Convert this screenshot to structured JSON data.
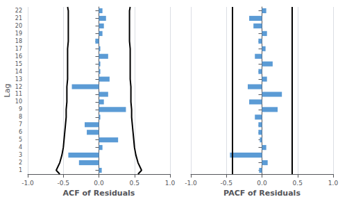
{
  "chart_data": [
    {
      "type": "bar",
      "orientation": "horizontal",
      "xlabel": "ACF of Residuals",
      "ylabel": "Lag",
      "y": [
        1,
        2,
        3,
        4,
        5,
        6,
        7,
        8,
        9,
        10,
        11,
        12,
        13,
        14,
        15,
        16,
        17,
        18,
        19,
        20,
        21,
        22
      ],
      "values": [
        0.04,
        -0.28,
        -0.43,
        0.05,
        0.27,
        -0.17,
        -0.2,
        0.02,
        0.38,
        0.07,
        0.13,
        -0.38,
        0.15,
        0.02,
        0.02,
        0.13,
        0.02,
        -0.05,
        0.05,
        0.07,
        0.1,
        0.05
      ],
      "color": "#5B9BD5",
      "conf_band": {
        "color": "#000000",
        "y": [
          0.5,
          1,
          2,
          3,
          4,
          5,
          6,
          7,
          8,
          9,
          10,
          11,
          12,
          13,
          14,
          15,
          16,
          17,
          18,
          19,
          20,
          21,
          22,
          22.5
        ],
        "low": [
          -0.55,
          -0.6,
          -0.55,
          -0.52,
          -0.5,
          -0.49,
          -0.48,
          -0.47,
          -0.46,
          -0.46,
          -0.45,
          -0.45,
          -0.45,
          -0.44,
          -0.44,
          -0.44,
          -0.44,
          -0.44,
          -0.43,
          -0.43,
          -0.43,
          -0.43,
          -0.43,
          -0.44
        ],
        "high": [
          0.55,
          0.6,
          0.55,
          0.52,
          0.5,
          0.49,
          0.48,
          0.47,
          0.46,
          0.46,
          0.45,
          0.45,
          0.45,
          0.44,
          0.44,
          0.44,
          0.44,
          0.44,
          0.43,
          0.43,
          0.43,
          0.43,
          0.43,
          0.44
        ]
      },
      "xlim": [
        -1.0,
        1.0
      ],
      "xticks": [
        {
          "value": -1.0,
          "label": "-1.0"
        },
        -0.5,
        {
          "value": 0.0,
          "label": "0.0"
        },
        0.5,
        {
          "value": 1.0,
          "label": "1.0"
        }
      ],
      "ylim": [
        0.5,
        22.5
      ],
      "yticks": [
        1,
        2,
        3,
        4,
        5,
        6,
        7,
        8,
        9,
        10,
        11,
        12,
        13,
        14,
        15,
        16,
        17,
        18,
        19,
        20,
        21,
        22
      ],
      "grid": true
    },
    {
      "type": "bar",
      "orientation": "horizontal",
      "xlabel": "PACF of Residuals",
      "y": [
        1,
        2,
        3,
        4,
        5,
        6,
        7,
        8,
        9,
        10,
        11,
        12,
        13,
        14,
        15,
        16,
        17,
        18,
        19,
        20,
        21,
        22
      ],
      "values": [
        -0.04,
        0.08,
        -0.45,
        0.06,
        -0.03,
        -0.05,
        -0.05,
        -0.1,
        0.22,
        -0.18,
        0.28,
        -0.2,
        0.07,
        -0.05,
        0.15,
        -0.1,
        0.05,
        -0.05,
        0.07,
        -0.12,
        -0.18,
        0.06
      ],
      "color": "#5B9BD5",
      "conf_limits": {
        "color": "#000000",
        "values": [
          -0.42,
          0.42
        ]
      },
      "xlim": [
        -1.0,
        1.0
      ],
      "xticks": [
        {
          "value": -1.0,
          "label": "-1.0"
        },
        -0.5,
        {
          "value": 0.0,
          "label": "0.0"
        },
        0.5,
        {
          "value": 1.0,
          "label": "1.0"
        }
      ],
      "ylim": [
        0.5,
        22.5
      ],
      "yticks": [
        1,
        2,
        3,
        4,
        5,
        6,
        7,
        8,
        9,
        10,
        11,
        12,
        13,
        14,
        15,
        16,
        17,
        18,
        19,
        20,
        21,
        22
      ],
      "grid": true,
      "tick_labels": "x"
    }
  ]
}
